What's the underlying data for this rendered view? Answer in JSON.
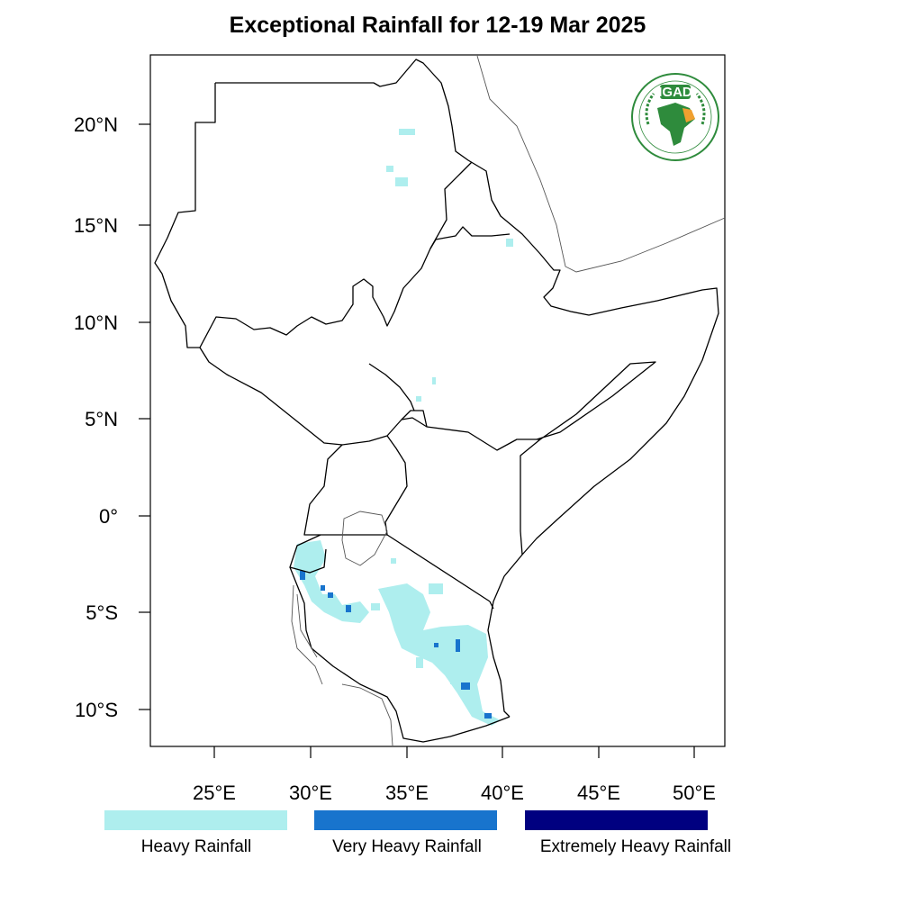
{
  "title": "Exceptional Rainfall for 12-19 Mar 2025",
  "chart_data": {
    "type": "map",
    "lon_range": [
      21.8,
      51.8
    ],
    "lat_range": [
      -11.8,
      23.5
    ],
    "lon_ticks": [
      "25°E",
      "30°E",
      "35°E",
      "40°E",
      "45°E",
      "50°E"
    ],
    "lat_ticks": [
      "20°N",
      "15°N",
      "10°N",
      "5°N",
      "0°",
      "5°S",
      "10°S"
    ],
    "categories": [
      {
        "label": "Heavy Rainfall",
        "color": "#aeeeee"
      },
      {
        "label": "Very Heavy Rainfall",
        "color": "#1874cd"
      },
      {
        "label": "Extremely Heavy Rainfall",
        "color": "#000080"
      }
    ]
  },
  "logo": {
    "text": "IGAD",
    "colors": {
      "green": "#2e8b3c",
      "orange": "#f0a030"
    }
  }
}
